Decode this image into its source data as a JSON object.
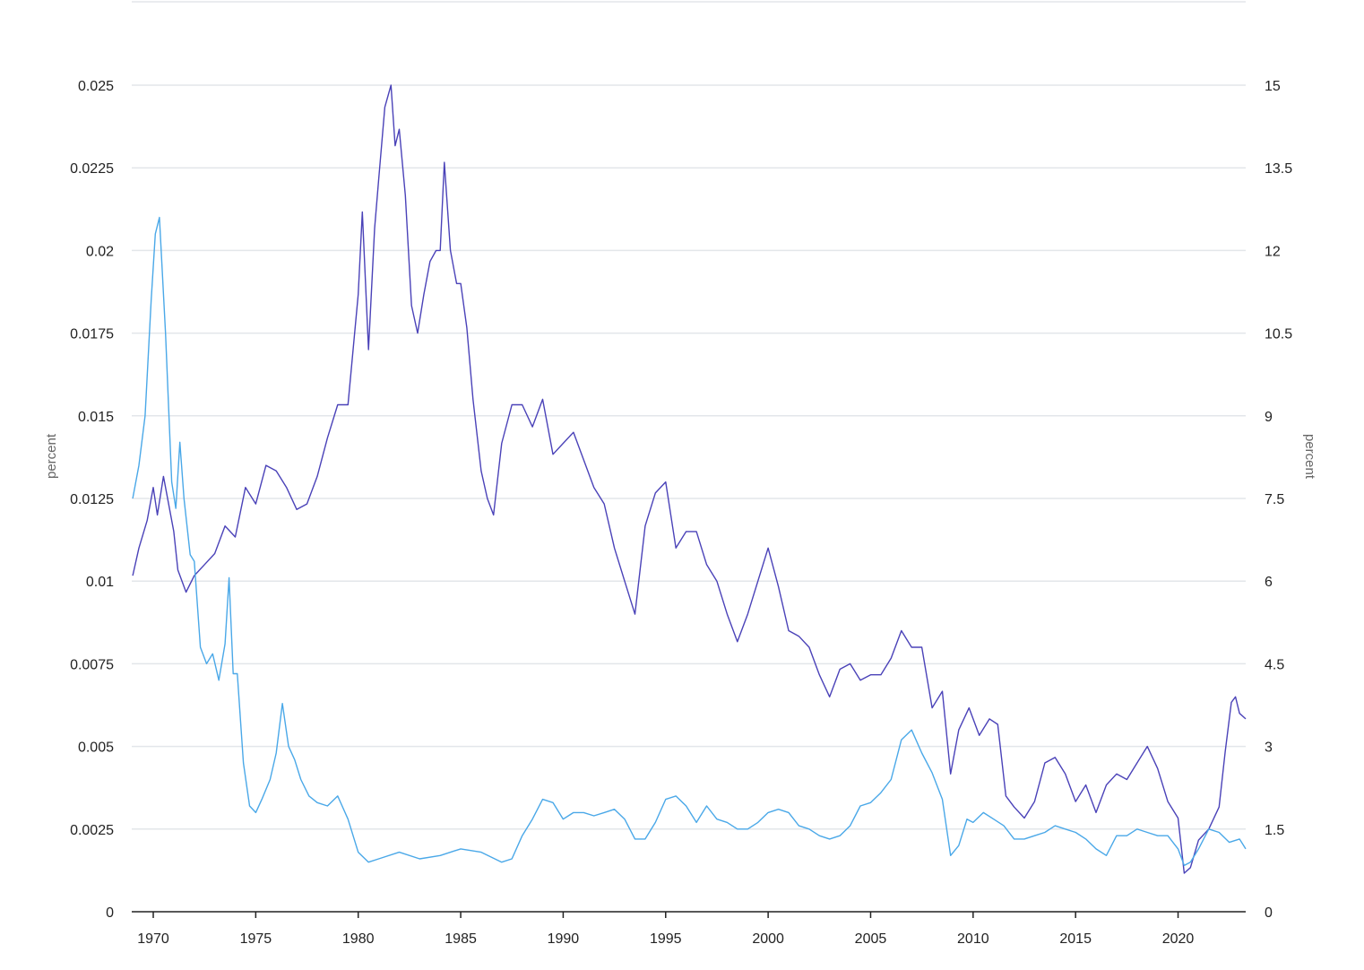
{
  "chart_data": {
    "type": "line",
    "title": "",
    "xlabel": "",
    "ylabel_left": "percent",
    "ylabel_right": "percent",
    "xlim": [
      1968.95,
      2023.3
    ],
    "ylim_left": [
      0,
      0.0275
    ],
    "ylim_right": [
      0,
      16.5
    ],
    "grid": true,
    "legend": "none",
    "x_ticks": [
      1970,
      1975,
      1980,
      1985,
      1990,
      1995,
      2000,
      2005,
      2010,
      2015,
      2020
    ],
    "x_tick_labels": [
      "1970",
      "1975",
      "1980",
      "1985",
      "1990",
      "1995",
      "2000",
      "2005",
      "2010",
      "2015",
      "2020"
    ],
    "y_left_ticks": [
      0,
      0.0025,
      0.005,
      0.0075,
      0.01,
      0.0125,
      0.015,
      0.0175,
      0.02,
      0.0225,
      0.025
    ],
    "y_left_tick_labels": [
      "0",
      "0.0025",
      "0.005",
      "0.0075",
      "0.01",
      "0.0125",
      "0.015",
      "0.0175",
      "0.02",
      "0.0225",
      "0.025"
    ],
    "y_right_ticks": [
      0,
      1.5,
      3,
      4.5,
      6,
      7.5,
      9,
      10.5,
      12,
      13.5,
      15
    ],
    "y_right_tick_labels": [
      "0",
      "1.5",
      "3",
      "4.5",
      "6",
      "7.5",
      "9",
      "10.5",
      "12",
      "13.5",
      "15"
    ],
    "series": [
      {
        "axis": "right",
        "color": "#4a42b8",
        "x": [
          1969.0,
          1969.3,
          1969.7,
          1970.0,
          1970.2,
          1970.5,
          1970.8,
          1971.0,
          1971.2,
          1971.6,
          1972.0,
          1972.5,
          1973.0,
          1973.5,
          1974.0,
          1974.5,
          1975.0,
          1975.5,
          1976.0,
          1976.5,
          1977.0,
          1977.5,
          1978.0,
          1978.5,
          1979.0,
          1979.5,
          1980.0,
          1980.2,
          1980.5,
          1980.8,
          1981.0,
          1981.3,
          1981.6,
          1981.8,
          1982.0,
          1982.3,
          1982.6,
          1982.9,
          1983.2,
          1983.5,
          1983.8,
          1984.0,
          1984.2,
          1984.5,
          1984.8,
          1985.0,
          1985.3,
          1985.6,
          1986.0,
          1986.3,
          1986.6,
          1987.0,
          1987.5,
          1988.0,
          1988.5,
          1989.0,
          1989.5,
          1990.0,
          1990.5,
          1991.0,
          1991.5,
          1992.0,
          1992.5,
          1993.0,
          1993.5,
          1994.0,
          1994.5,
          1995.0,
          1995.5,
          1996.0,
          1996.5,
          1997.0,
          1997.5,
          1998.0,
          1998.5,
          1999.0,
          1999.5,
          2000.0,
          2000.5,
          2001.0,
          2001.5,
          2002.0,
          2002.5,
          2003.0,
          2003.5,
          2004.0,
          2004.5,
          2005.0,
          2005.5,
          2006.0,
          2006.5,
          2007.0,
          2007.5,
          2008.0,
          2008.5,
          2008.9,
          2009.3,
          2009.8,
          2010.3,
          2010.8,
          2011.2,
          2011.6,
          2012.0,
          2012.5,
          2013.0,
          2013.5,
          2014.0,
          2014.5,
          2015.0,
          2015.5,
          2016.0,
          2016.5,
          2017.0,
          2017.5,
          2018.0,
          2018.5,
          2019.0,
          2019.5,
          2020.0,
          2020.3,
          2020.6,
          2021.0,
          2021.5,
          2022.0,
          2022.3,
          2022.6,
          2022.8,
          2023.0,
          2023.3
        ],
        "y": [
          6.1,
          6.6,
          7.1,
          7.7,
          7.2,
          7.9,
          7.3,
          6.9,
          6.2,
          5.8,
          6.1,
          6.3,
          6.5,
          7.0,
          6.8,
          7.7,
          7.4,
          8.1,
          8.0,
          7.7,
          7.3,
          7.4,
          7.9,
          8.6,
          9.2,
          9.2,
          11.2,
          12.7,
          10.2,
          12.4,
          13.3,
          14.6,
          15.0,
          13.9,
          14.2,
          13.0,
          11.0,
          10.5,
          11.2,
          11.8,
          12.0,
          12.0,
          13.6,
          12.0,
          11.4,
          11.4,
          10.6,
          9.3,
          8.0,
          7.5,
          7.2,
          8.5,
          9.2,
          9.2,
          8.8,
          9.3,
          8.3,
          8.5,
          8.7,
          8.2,
          7.7,
          7.4,
          6.6,
          6.0,
          5.4,
          7.0,
          7.6,
          7.8,
          6.6,
          6.9,
          6.9,
          6.3,
          6.0,
          5.4,
          4.9,
          5.4,
          6.0,
          6.6,
          5.9,
          5.1,
          5.0,
          4.8,
          4.3,
          3.9,
          4.4,
          4.5,
          4.2,
          4.3,
          4.3,
          4.6,
          5.1,
          4.8,
          4.8,
          3.7,
          4.0,
          2.5,
          3.3,
          3.7,
          3.2,
          3.5,
          3.4,
          2.1,
          1.9,
          1.7,
          2.0,
          2.7,
          2.8,
          2.5,
          2.0,
          2.3,
          1.8,
          2.3,
          2.5,
          2.4,
          2.7,
          3.0,
          2.6,
          2.0,
          1.7,
          0.7,
          0.8,
          1.3,
          1.5,
          1.9,
          2.9,
          3.8,
          3.9,
          3.6,
          3.5
        ]
      },
      {
        "axis": "left",
        "color": "#4aa8e8",
        "x": [
          1969.0,
          1969.3,
          1969.6,
          1969.9,
          1970.1,
          1970.3,
          1970.6,
          1970.9,
          1971.1,
          1971.3,
          1971.5,
          1971.8,
          1972.0,
          1972.3,
          1972.6,
          1972.9,
          1973.2,
          1973.5,
          1973.7,
          1973.9,
          1974.1,
          1974.4,
          1974.7,
          1975.0,
          1975.3,
          1975.7,
          1976.0,
          1976.3,
          1976.6,
          1976.9,
          1977.2,
          1977.6,
          1978.0,
          1978.5,
          1979.0,
          1979.5,
          1980.0,
          1980.5,
          1981.0,
          1982.0,
          1983.0,
          1984.0,
          1985.0,
          1986.0,
          1987.0,
          1987.5,
          1988.0,
          1988.5,
          1989.0,
          1989.5,
          1990.0,
          1990.5,
          1991.0,
          1991.5,
          1992.0,
          1992.5,
          1993.0,
          1993.5,
          1994.0,
          1994.5,
          1995.0,
          1995.5,
          1996.0,
          1996.5,
          1997.0,
          1997.5,
          1998.0,
          1998.5,
          1999.0,
          1999.5,
          2000.0,
          2000.5,
          2001.0,
          2001.5,
          2002.0,
          2002.5,
          2003.0,
          2003.5,
          2004.0,
          2004.5,
          2005.0,
          2005.5,
          2006.0,
          2006.5,
          2007.0,
          2007.5,
          2008.0,
          2008.5,
          2008.9,
          2009.3,
          2009.7,
          2010.0,
          2010.5,
          2011.0,
          2011.5,
          2012.0,
          2012.5,
          2013.0,
          2013.5,
          2014.0,
          2014.5,
          2015.0,
          2015.5,
          2016.0,
          2016.5,
          2017.0,
          2017.5,
          2018.0,
          2018.5,
          2019.0,
          2019.5,
          2020.0,
          2020.3,
          2020.6,
          2021.0,
          2021.5,
          2022.0,
          2022.5,
          2023.0,
          2023.3
        ],
        "y": [
          0.0125,
          0.0135,
          0.015,
          0.0185,
          0.0205,
          0.021,
          0.0175,
          0.013,
          0.0122,
          0.0142,
          0.0125,
          0.0108,
          0.0106,
          0.008,
          0.0075,
          0.0078,
          0.007,
          0.0081,
          0.0101,
          0.0072,
          0.0072,
          0.0045,
          0.0032,
          0.003,
          0.0034,
          0.004,
          0.0048,
          0.0063,
          0.005,
          0.0046,
          0.004,
          0.0035,
          0.0033,
          0.0032,
          0.0035,
          0.0028,
          0.0018,
          0.0015,
          0.0016,
          0.0018,
          0.0016,
          0.0017,
          0.0019,
          0.0018,
          0.0015,
          0.0016,
          0.0023,
          0.0028,
          0.0034,
          0.0033,
          0.0028,
          0.003,
          0.003,
          0.0029,
          0.003,
          0.0031,
          0.0028,
          0.0022,
          0.0022,
          0.0027,
          0.0034,
          0.0035,
          0.0032,
          0.0027,
          0.0032,
          0.0028,
          0.0027,
          0.0025,
          0.0025,
          0.0027,
          0.003,
          0.0031,
          0.003,
          0.0026,
          0.0025,
          0.0023,
          0.0022,
          0.0023,
          0.0026,
          0.0032,
          0.0033,
          0.0036,
          0.004,
          0.0052,
          0.0055,
          0.0048,
          0.0042,
          0.0034,
          0.0017,
          0.002,
          0.0028,
          0.0027,
          0.003,
          0.0028,
          0.0026,
          0.0022,
          0.0022,
          0.0023,
          0.0024,
          0.0026,
          0.0025,
          0.0024,
          0.0022,
          0.0019,
          0.0017,
          0.0023,
          0.0023,
          0.0025,
          0.0024,
          0.0023,
          0.0023,
          0.0019,
          0.0014,
          0.0015,
          0.0019,
          0.0025,
          0.0024,
          0.0021,
          0.0022,
          0.0019
        ]
      }
    ]
  }
}
